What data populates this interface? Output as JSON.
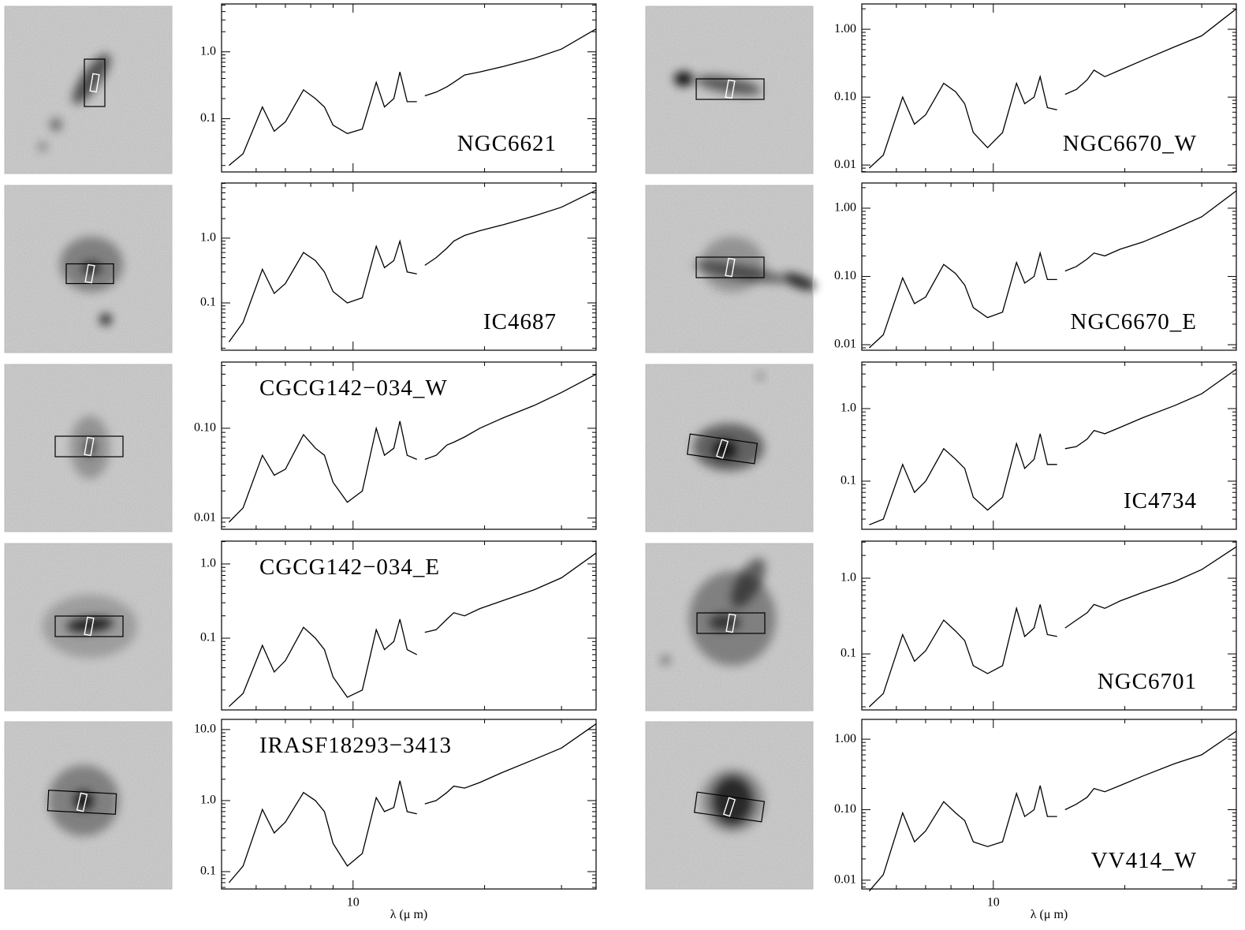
{
  "chart_data": [
    {
      "type": "line",
      "title": "NGC6621",
      "xscale": "log",
      "yscale": "log",
      "color": "#000000",
      "x": [
        5.2,
        5.6,
        6.2,
        6.6,
        7.0,
        7.7,
        8.2,
        8.6,
        9.0,
        9.7,
        10.5,
        11.3,
        11.8,
        12.4,
        12.8,
        13.3,
        14.0,
        14.3,
        14.6,
        15.5,
        16.4,
        17.0,
        18.0,
        19.5,
        22,
        26,
        30,
        36
      ],
      "values": [
        0.02,
        0.03,
        0.15,
        0.065,
        0.09,
        0.27,
        0.2,
        0.15,
        0.08,
        0.06,
        0.07,
        0.35,
        0.15,
        0.2,
        0.5,
        0.18,
        0.18,
        null,
        0.22,
        0.25,
        0.3,
        0.35,
        0.45,
        0.5,
        0.6,
        0.8,
        1.1,
        2.2
      ],
      "xlim": [
        5,
        36
      ],
      "xticks": [
        10
      ],
      "ylim": [
        0.016,
        5.2
      ],
      "yticks": [
        0.1,
        {
          "value": 1,
          "label": "1.0"
        }
      ]
    },
    {
      "type": "line",
      "title": "IC4687",
      "xscale": "log",
      "yscale": "log",
      "color": "#000000",
      "x": [
        5.2,
        5.6,
        6.2,
        6.6,
        7.0,
        7.7,
        8.2,
        8.6,
        9.0,
        9.7,
        10.5,
        11.3,
        11.8,
        12.4,
        12.8,
        13.3,
        14.0,
        14.3,
        14.6,
        15.5,
        16.4,
        17.0,
        18.0,
        19.5,
        22,
        26,
        30,
        36
      ],
      "values": [
        0.025,
        0.05,
        0.33,
        0.14,
        0.2,
        0.6,
        0.45,
        0.3,
        0.15,
        0.1,
        0.12,
        0.75,
        0.35,
        0.45,
        0.9,
        0.3,
        0.28,
        null,
        0.38,
        0.5,
        0.7,
        0.9,
        1.1,
        1.3,
        1.6,
        2.2,
        3.0,
        5.5
      ],
      "xlim": [
        5,
        36
      ],
      "xticks": [
        10
      ],
      "ylim": [
        0.0186,
        7.1
      ],
      "yticks": [
        0.1,
        {
          "value": 1,
          "label": "1.0"
        }
      ]
    },
    {
      "type": "line",
      "title": "CGCG142−034_W",
      "xscale": "log",
      "yscale": "log",
      "color": "#000000",
      "x": [
        5.2,
        5.6,
        6.2,
        6.6,
        7.0,
        7.7,
        8.2,
        8.6,
        9.0,
        9.7,
        10.5,
        11.3,
        11.8,
        12.4,
        12.8,
        13.3,
        14.0,
        14.3,
        14.6,
        15.5,
        16.4,
        17.0,
        18.0,
        19.5,
        22,
        26,
        30,
        36
      ],
      "values": [
        0.009,
        0.013,
        0.05,
        0.03,
        0.035,
        0.085,
        0.06,
        0.05,
        0.025,
        0.015,
        0.02,
        0.1,
        0.05,
        0.06,
        0.12,
        0.05,
        0.045,
        null,
        0.045,
        0.05,
        0.065,
        0.07,
        0.08,
        0.1,
        0.13,
        0.18,
        0.25,
        0.4
      ],
      "xlim": [
        5,
        36
      ],
      "xticks": [
        10
      ],
      "ylim": [
        0.0075,
        0.546
      ],
      "yticks": [
        0.01,
        {
          "value": 0.1,
          "label": "0.10"
        }
      ]
    },
    {
      "type": "line",
      "title": "CGCG142−034_E",
      "xscale": "log",
      "yscale": "log",
      "color": "#000000",
      "x": [
        5.2,
        5.6,
        6.2,
        6.6,
        7.0,
        7.7,
        8.2,
        8.6,
        9.0,
        9.7,
        10.5,
        11.3,
        11.8,
        12.4,
        12.8,
        13.3,
        14.0,
        14.3,
        14.6,
        15.5,
        16.4,
        17.0,
        18.0,
        19.5,
        22,
        26,
        30,
        36
      ],
      "values": [
        0.012,
        0.018,
        0.08,
        0.035,
        0.05,
        0.14,
        0.1,
        0.07,
        0.03,
        0.016,
        0.02,
        0.13,
        0.07,
        0.09,
        0.18,
        0.07,
        0.06,
        null,
        0.12,
        0.13,
        0.18,
        0.22,
        0.2,
        0.25,
        0.32,
        0.45,
        0.65,
        1.4
      ],
      "xlim": [
        5,
        36
      ],
      "xticks": [
        10
      ],
      "ylim": [
        0.0108,
        2.03
      ],
      "yticks": [
        0.1,
        {
          "value": 1,
          "label": "1.0"
        }
      ]
    },
    {
      "type": "line",
      "title": "IRASF18293−3413",
      "xscale": "log",
      "yscale": "log",
      "color": "#000000",
      "x": [
        5.2,
        5.6,
        6.2,
        6.6,
        7.0,
        7.7,
        8.2,
        8.6,
        9.0,
        9.7,
        10.5,
        11.3,
        11.8,
        12.4,
        12.8,
        13.3,
        14.0,
        14.3,
        14.6,
        15.5,
        16.4,
        17.0,
        18.0,
        19.5,
        22,
        26,
        30,
        36
      ],
      "values": [
        0.07,
        0.12,
        0.75,
        0.35,
        0.5,
        1.3,
        1.0,
        0.7,
        0.25,
        0.12,
        0.18,
        1.1,
        0.7,
        0.8,
        1.9,
        0.7,
        0.65,
        null,
        0.9,
        1.0,
        1.3,
        1.6,
        1.5,
        1.8,
        2.5,
        3.8,
        5.5,
        12
      ],
      "xlim": [
        5,
        36
      ],
      "xticks": [
        10
      ],
      "ylim": [
        0.057,
        13.9
      ],
      "yticks": [
        0.1,
        {
          "value": 1,
          "label": "1.0"
        },
        {
          "value": 10,
          "label": "10.0"
        }
      ],
      "xlabel": "λ (μ m)"
    },
    {
      "type": "line",
      "title": "NGC6670_W",
      "xscale": "log",
      "yscale": "log",
      "color": "#000000",
      "x": [
        5.2,
        5.6,
        6.2,
        6.6,
        7.0,
        7.7,
        8.2,
        8.6,
        9.0,
        9.7,
        10.5,
        11.3,
        11.8,
        12.4,
        12.8,
        13.3,
        14.0,
        14.3,
        14.6,
        15.5,
        16.4,
        17.0,
        18.0,
        19.5,
        22,
        26,
        30,
        36
      ],
      "values": [
        0.009,
        0.014,
        0.1,
        0.04,
        0.055,
        0.16,
        0.12,
        0.08,
        0.03,
        0.018,
        0.03,
        0.16,
        0.08,
        0.1,
        0.2,
        0.07,
        0.065,
        null,
        0.11,
        0.13,
        0.18,
        0.25,
        0.2,
        0.25,
        0.35,
        0.55,
        0.8,
        2.0
      ],
      "xlim": [
        5,
        36
      ],
      "xticks": [
        10
      ],
      "ylim": [
        0.0079,
        2.36
      ],
      "yticks": [
        0.01,
        {
          "value": 0.1,
          "label": "0.10"
        },
        {
          "value": 1,
          "label": "1.00"
        }
      ]
    },
    {
      "type": "line",
      "title": "NGC6670_E",
      "xscale": "log",
      "yscale": "log",
      "color": "#000000",
      "x": [
        5.2,
        5.6,
        6.2,
        6.6,
        7.0,
        7.7,
        8.2,
        8.6,
        9.0,
        9.7,
        10.5,
        11.3,
        11.8,
        12.4,
        12.8,
        13.3,
        14.0,
        14.3,
        14.6,
        15.5,
        16.4,
        17.0,
        18.0,
        19.5,
        22,
        26,
        30,
        36
      ],
      "values": [
        0.009,
        0.014,
        0.095,
        0.04,
        0.05,
        0.15,
        0.11,
        0.075,
        0.035,
        0.025,
        0.03,
        0.16,
        0.08,
        0.1,
        0.22,
        0.09,
        0.09,
        null,
        0.12,
        0.14,
        0.18,
        0.22,
        0.2,
        0.25,
        0.32,
        0.5,
        0.75,
        1.8
      ],
      "xlim": [
        5,
        36
      ],
      "xticks": [
        10
      ],
      "ylim": [
        0.0083,
        2.34
      ],
      "yticks": [
        0.01,
        {
          "value": 0.1,
          "label": "0.10"
        },
        {
          "value": 1,
          "label": "1.00"
        }
      ]
    },
    {
      "type": "line",
      "title": "IC4734",
      "xscale": "log",
      "yscale": "log",
      "color": "#000000",
      "x": [
        5.2,
        5.6,
        6.2,
        6.6,
        7.0,
        7.7,
        8.2,
        8.6,
        9.0,
        9.7,
        10.5,
        11.3,
        11.8,
        12.4,
        12.8,
        13.3,
        14.0,
        14.3,
        14.6,
        15.5,
        16.4,
        17.0,
        18.0,
        19.5,
        22,
        26,
        30,
        36
      ],
      "values": [
        0.025,
        0.03,
        0.17,
        0.07,
        0.1,
        0.28,
        0.2,
        0.15,
        0.06,
        0.04,
        0.06,
        0.33,
        0.15,
        0.2,
        0.45,
        0.17,
        0.17,
        null,
        0.28,
        0.3,
        0.38,
        0.5,
        0.45,
        0.55,
        0.75,
        1.1,
        1.6,
        3.5
      ],
      "xlim": [
        5,
        36
      ],
      "xticks": [
        10
      ],
      "ylim": [
        0.0217,
        4.38
      ],
      "yticks": [
        0.1,
        {
          "value": 1,
          "label": "1.0"
        }
      ]
    },
    {
      "type": "line",
      "title": "NGC6701",
      "xscale": "log",
      "yscale": "log",
      "color": "#000000",
      "x": [
        5.2,
        5.6,
        6.2,
        6.6,
        7.0,
        7.7,
        8.2,
        8.6,
        9.0,
        9.7,
        10.5,
        11.3,
        11.8,
        12.4,
        12.8,
        13.3,
        14.0,
        14.3,
        14.6,
        15.5,
        16.4,
        17.0,
        18.0,
        19.5,
        22,
        26,
        30,
        36
      ],
      "values": [
        0.02,
        0.03,
        0.18,
        0.08,
        0.11,
        0.28,
        0.2,
        0.15,
        0.07,
        0.055,
        0.07,
        0.4,
        0.17,
        0.22,
        0.45,
        0.18,
        0.17,
        null,
        0.22,
        0.28,
        0.35,
        0.45,
        0.4,
        0.5,
        0.65,
        0.9,
        1.3,
        2.6
      ],
      "xlim": [
        5,
        36
      ],
      "xticks": [
        10
      ],
      "ylim": [
        0.0182,
        3.09
      ],
      "yticks": [
        0.1,
        {
          "value": 1,
          "label": "1.0"
        }
      ]
    },
    {
      "type": "line",
      "title": "VV414_W",
      "xscale": "log",
      "yscale": "log",
      "color": "#000000",
      "x": [
        5.2,
        5.6,
        6.2,
        6.6,
        7.0,
        7.7,
        8.2,
        8.6,
        9.0,
        9.7,
        10.5,
        11.3,
        11.8,
        12.4,
        12.8,
        13.3,
        14.0,
        14.3,
        14.6,
        15.5,
        16.4,
        17.0,
        18.0,
        19.5,
        22,
        26,
        30,
        36
      ],
      "values": [
        0.007,
        0.012,
        0.09,
        0.035,
        0.05,
        0.13,
        0.09,
        0.07,
        0.035,
        0.03,
        0.035,
        0.17,
        0.08,
        0.1,
        0.22,
        0.08,
        0.08,
        null,
        0.1,
        0.12,
        0.15,
        0.2,
        0.18,
        0.22,
        0.3,
        0.45,
        0.6,
        1.3
      ],
      "xlim": [
        5,
        36
      ],
      "xticks": [
        10
      ],
      "ylim": [
        0.0075,
        1.91
      ],
      "yticks": [
        0.01,
        {
          "value": 0.1,
          "label": "0.10"
        },
        {
          "value": 1,
          "label": "1.00"
        }
      ],
      "xlabel": "λ (μ m)"
    }
  ]
}
